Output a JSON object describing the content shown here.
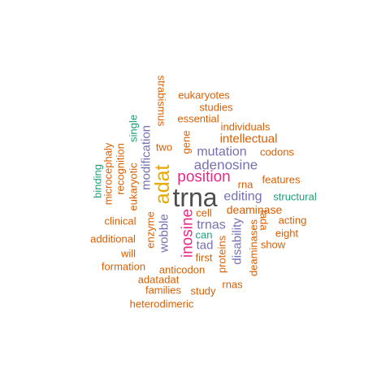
{
  "colors": {
    "dark": "#4d4d4d",
    "orange": "#d95f02",
    "gold": "#e6a800",
    "magenta": "#e7298a",
    "purple": "#7570b3",
    "green": "#1b9e77"
  },
  "words": [
    {
      "text": "trna",
      "color": "dark"
    },
    {
      "text": "adat",
      "color": "gold"
    },
    {
      "text": "position",
      "color": "magenta"
    },
    {
      "text": "inosine",
      "color": "magenta"
    },
    {
      "text": "adenosine",
      "color": "purple"
    },
    {
      "text": "mutation",
      "color": "purple"
    },
    {
      "text": "editing",
      "color": "purple"
    },
    {
      "text": "trnas",
      "color": "purple"
    },
    {
      "text": "modification",
      "color": "purple"
    },
    {
      "text": "wobble",
      "color": "purple"
    },
    {
      "text": "disability",
      "color": "purple"
    },
    {
      "text": "tad",
      "color": "purple"
    },
    {
      "text": "intellectual",
      "color": "orange"
    },
    {
      "text": "deaminase",
      "color": "orange"
    },
    {
      "text": "eukaryotes",
      "color": "orange"
    },
    {
      "text": "studies",
      "color": "orange"
    },
    {
      "text": "essential",
      "color": "orange"
    },
    {
      "text": "individuals",
      "color": "orange"
    },
    {
      "text": "gene",
      "color": "orange"
    },
    {
      "text": "two",
      "color": "orange"
    },
    {
      "text": "codons",
      "color": "orange"
    },
    {
      "text": "rna",
      "color": "orange"
    },
    {
      "text": "features",
      "color": "orange"
    },
    {
      "text": "cell",
      "color": "orange"
    },
    {
      "text": "acting",
      "color": "orange"
    },
    {
      "text": "eight",
      "color": "orange"
    },
    {
      "text": "show",
      "color": "orange"
    },
    {
      "text": "first",
      "color": "orange"
    },
    {
      "text": "anticodon",
      "color": "orange"
    },
    {
      "text": "adatadat",
      "color": "orange"
    },
    {
      "text": "families",
      "color": "orange"
    },
    {
      "text": "study",
      "color": "orange"
    },
    {
      "text": "rnas",
      "color": "orange"
    },
    {
      "text": "heterodimeric",
      "color": "orange"
    },
    {
      "text": "formation",
      "color": "orange"
    },
    {
      "text": "will",
      "color": "orange"
    },
    {
      "text": "additional",
      "color": "orange"
    },
    {
      "text": "clinical",
      "color": "orange"
    },
    {
      "text": "enzyme",
      "color": "orange"
    },
    {
      "text": "eukaryotic",
      "color": "orange"
    },
    {
      "text": "recognition",
      "color": "orange"
    },
    {
      "text": "microcephaly",
      "color": "orange"
    },
    {
      "text": "strabismus",
      "color": "orange"
    },
    {
      "text": "proteins",
      "color": "orange"
    },
    {
      "text": "deaminases",
      "color": "orange"
    },
    {
      "text": "tada",
      "color": "orange"
    },
    {
      "text": "single",
      "color": "green"
    },
    {
      "text": "binding",
      "color": "green"
    },
    {
      "text": "structural",
      "color": "green"
    },
    {
      "text": "can",
      "color": "green"
    }
  ]
}
